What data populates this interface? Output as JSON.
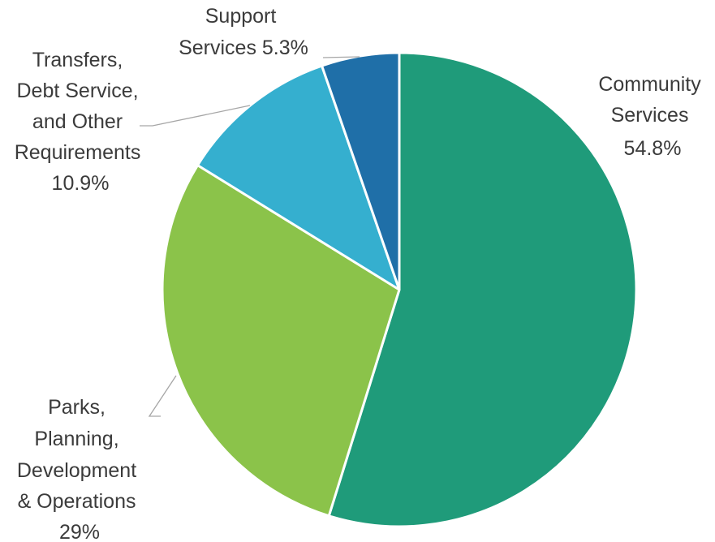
{
  "chart_data": {
    "type": "pie",
    "title": "",
    "slices": [
      {
        "label": "Community Services",
        "value": 54.8,
        "value_label": "54.8%",
        "color": "#1f9b7a"
      },
      {
        "label": "Parks, Planning, Development & Operations",
        "value": 29,
        "value_label": "29%",
        "color": "#8bc34a"
      },
      {
        "label": "Transfers, Debt Service, and Other Requirements",
        "value": 10.9,
        "value_label": "10.9%",
        "color": "#35afcf"
      },
      {
        "label": "Support Services",
        "value": 5.3,
        "value_label": "5.3%",
        "color": "#1f6fa8"
      }
    ],
    "start_angle": "12 o'clock",
    "direction": "clockwise",
    "slice_border_color": "#ffffff",
    "legend": "none"
  }
}
